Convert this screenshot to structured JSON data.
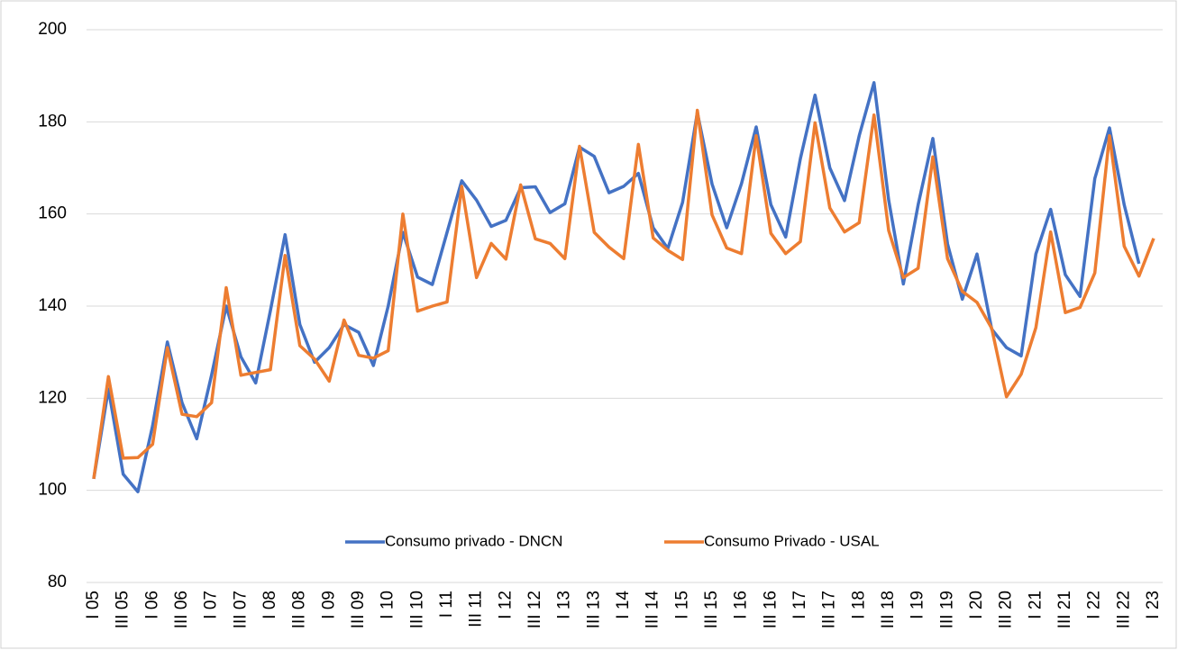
{
  "chart_data": {
    "type": "line",
    "categories": [
      "I 05",
      null,
      "III 05",
      null,
      "I 06",
      null,
      "III 06",
      null,
      "I 07",
      null,
      "III 07",
      null,
      "I 08",
      null,
      "III 08",
      null,
      "I 09",
      null,
      "III 09",
      null,
      "I 10",
      null,
      "III 10",
      null,
      "I 11",
      null,
      "III 11",
      null,
      "I 12",
      null,
      "III 12",
      null,
      "I 13",
      null,
      "III 13",
      null,
      "I 14",
      null,
      "III 14",
      null,
      "I 15",
      null,
      "III 15",
      null,
      "I 16",
      null,
      "III 16",
      null,
      "I 17",
      null,
      "III 17",
      null,
      "I 18",
      null,
      "III 18",
      null,
      "I 19",
      null,
      "III 19",
      null,
      "I 20",
      null,
      "III 20",
      null,
      "I 21",
      null,
      "III 21",
      null,
      "I 22",
      null,
      "III 22",
      null,
      "I 23"
    ],
    "series": [
      {
        "name": "Consumo privado - DNCN",
        "color": "#4472c4",
        "values": [
          102.5,
          122,
          103.5,
          99.7,
          114,
          132.2,
          119,
          111.2,
          125,
          140,
          129,
          123.3,
          139,
          155.5,
          136,
          127.8,
          131,
          136,
          134.3,
          127.1,
          140,
          156,
          146.3,
          144.7,
          156,
          167.2,
          163,
          157.3,
          158.6,
          165.7,
          165.9,
          160.3,
          162.2,
          174.5,
          172.5,
          164.6,
          166,
          168.8,
          157,
          152.5,
          162.5,
          182,
          166.5,
          157,
          166.6,
          178.9,
          162,
          155,
          172,
          185.8,
          170,
          162.9,
          177,
          188.5,
          163,
          144.8,
          162,
          176.4,
          153.5,
          141.5,
          151.3,
          135,
          131,
          129.2,
          151.3,
          161,
          146.8,
          142.1,
          167.7,
          178.7,
          162,
          149.2,
          null
        ]
      },
      {
        "name": "Consumo Privado - USAL",
        "color": "#ed7d31",
        "values": [
          102.5,
          124.7,
          107,
          107.1,
          110,
          131,
          116.5,
          116,
          119,
          144,
          125,
          125.6,
          126.2,
          151,
          131.4,
          128.5,
          123.7,
          137,
          129.3,
          128.7,
          130.3,
          160,
          138.9,
          140,
          140.9,
          166,
          146.2,
          153.6,
          150.2,
          166.3,
          154.6,
          153.6,
          150.3,
          174.7,
          156,
          152.8,
          150.3,
          175.1,
          154.8,
          152.1,
          150.1,
          182.5,
          159.8,
          152.6,
          151.4,
          177,
          155.8,
          151.4,
          154,
          179.8,
          161.3,
          156.1,
          158.1,
          181.5,
          156.4,
          146.2,
          148.2,
          172.4,
          150.3,
          143.2,
          140.8,
          135.2,
          120.3,
          125.2,
          135.3,
          156.1,
          138.6,
          139.7,
          147.2,
          177,
          153,
          146.5,
          154.7
        ]
      }
    ],
    "ylim": [
      80,
      200
    ],
    "yticks": [
      80,
      100,
      120,
      140,
      160,
      180,
      200
    ],
    "grid": true,
    "legend": "bottom"
  }
}
